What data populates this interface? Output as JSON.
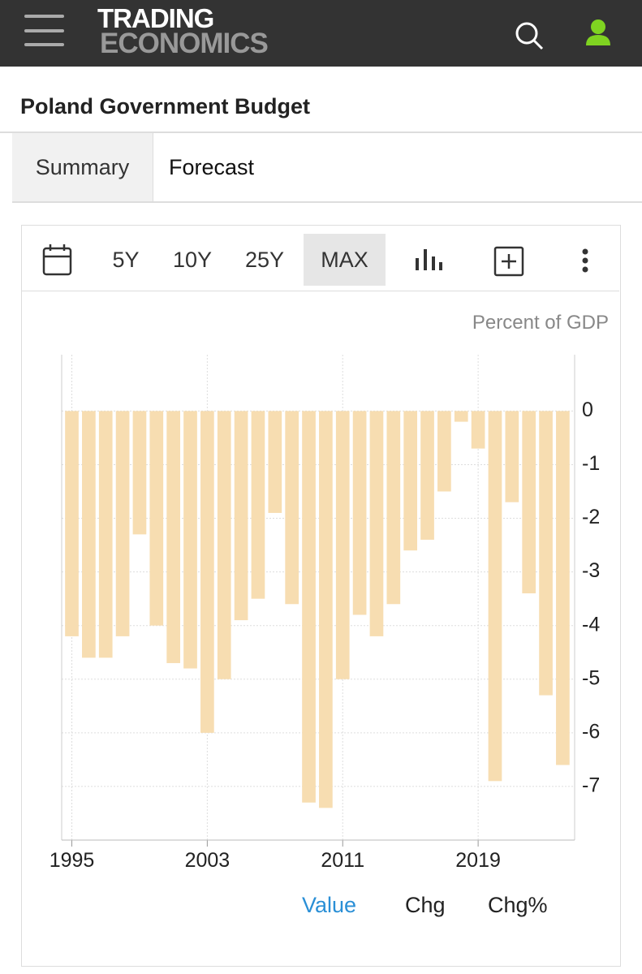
{
  "header": {
    "logo_top": "TRADING",
    "logo_bottom": "ECONOMICS"
  },
  "page_title": "Poland Government Budget",
  "tabs": [
    "Summary",
    "Forecast"
  ],
  "toolbar": {
    "ranges": [
      "5Y",
      "10Y",
      "25Y",
      "MAX"
    ]
  },
  "value_tabs": [
    "Value",
    "Chg",
    "Chg%"
  ],
  "chart_data": {
    "type": "bar",
    "unit_label": "Percent of GDP",
    "x": [
      1995,
      1996,
      1997,
      1998,
      1999,
      2000,
      2001,
      2002,
      2003,
      2004,
      2005,
      2006,
      2007,
      2008,
      2009,
      2010,
      2011,
      2012,
      2013,
      2014,
      2015,
      2016,
      2017,
      2018,
      2019,
      2020,
      2021,
      2022,
      2023,
      2024
    ],
    "values": [
      -4.2,
      -4.6,
      -4.6,
      -4.2,
      -2.3,
      -4.0,
      -4.7,
      -4.8,
      -6.0,
      -5.0,
      -3.9,
      -3.5,
      -1.9,
      -3.6,
      -7.3,
      -7.4,
      -5.0,
      -3.8,
      -4.2,
      -3.6,
      -2.6,
      -2.4,
      -1.5,
      -0.2,
      -0.7,
      -6.9,
      -1.7,
      -3.4,
      -5.3,
      -6.6
    ],
    "color": "#f7ddb1",
    "xlim": [
      1994.4,
      2024.7
    ],
    "xticks": [
      1995,
      2003,
      2011,
      2019
    ],
    "ylim": [
      -8.0,
      1.05
    ],
    "yticks": [
      0,
      -1,
      -2,
      -3,
      -4,
      -5,
      -6,
      -7
    ],
    "grid": true
  }
}
